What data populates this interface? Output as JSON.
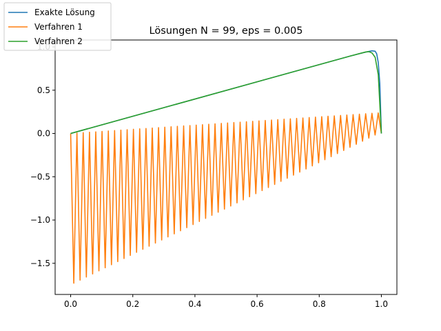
{
  "chart_data": {
    "type": "line",
    "title": "Lösungen N = 99, eps = 0.005",
    "xlabel": "",
    "ylabel": "",
    "xlim": [
      -0.05,
      1.05
    ],
    "ylim": [
      -1.86,
      1.08
    ],
    "x_ticks": [
      0.0,
      0.2,
      0.4,
      0.6,
      0.8,
      1.0
    ],
    "x_tick_labels": [
      "0.0",
      "0.2",
      "0.4",
      "0.6",
      "0.8",
      "1.0"
    ],
    "y_ticks": [
      -1.5,
      -1.0,
      -0.5,
      0.0,
      0.5,
      1.0
    ],
    "y_tick_labels": [
      "−1.5",
      "−1.0",
      "−0.5",
      "0.0",
      "0.5",
      "1.0"
    ],
    "grid": false,
    "legend_position": "top-left",
    "series": [
      {
        "name": "Exakte Lösung",
        "color": "#1f77b4",
        "points": [
          [
            0.0,
            0.0
          ],
          [
            0.9,
            0.895
          ],
          [
            0.94,
            0.932
          ],
          [
            0.96,
            0.948
          ],
          [
            0.97,
            0.955
          ],
          [
            0.98,
            0.95
          ],
          [
            0.985,
            0.92
          ],
          [
            0.99,
            0.82
          ],
          [
            0.995,
            0.58
          ],
          [
            1.0,
            0.0
          ]
        ]
      },
      {
        "name": "Verfahren 1",
        "color": "#ff7f0e",
        "n_points": 100,
        "even_points_line": [
          [
            0.0,
            0.0
          ],
          [
            1.0,
            0.24
          ]
        ],
        "odd_points_line": [
          [
            0.01,
            -1.73
          ],
          [
            0.99,
            0.0
          ]
        ],
        "last_point": [
          1.0,
          0.0
        ]
      },
      {
        "name": "Verfahren 2",
        "color": "#2ca02c",
        "points": [
          [
            0.0,
            0.0
          ],
          [
            0.9,
            0.895
          ],
          [
            0.95,
            0.942
          ],
          [
            0.96,
            0.945
          ],
          [
            0.97,
            0.93
          ],
          [
            0.98,
            0.88
          ],
          [
            0.99,
            0.68
          ],
          [
            1.0,
            0.0
          ]
        ]
      }
    ]
  }
}
